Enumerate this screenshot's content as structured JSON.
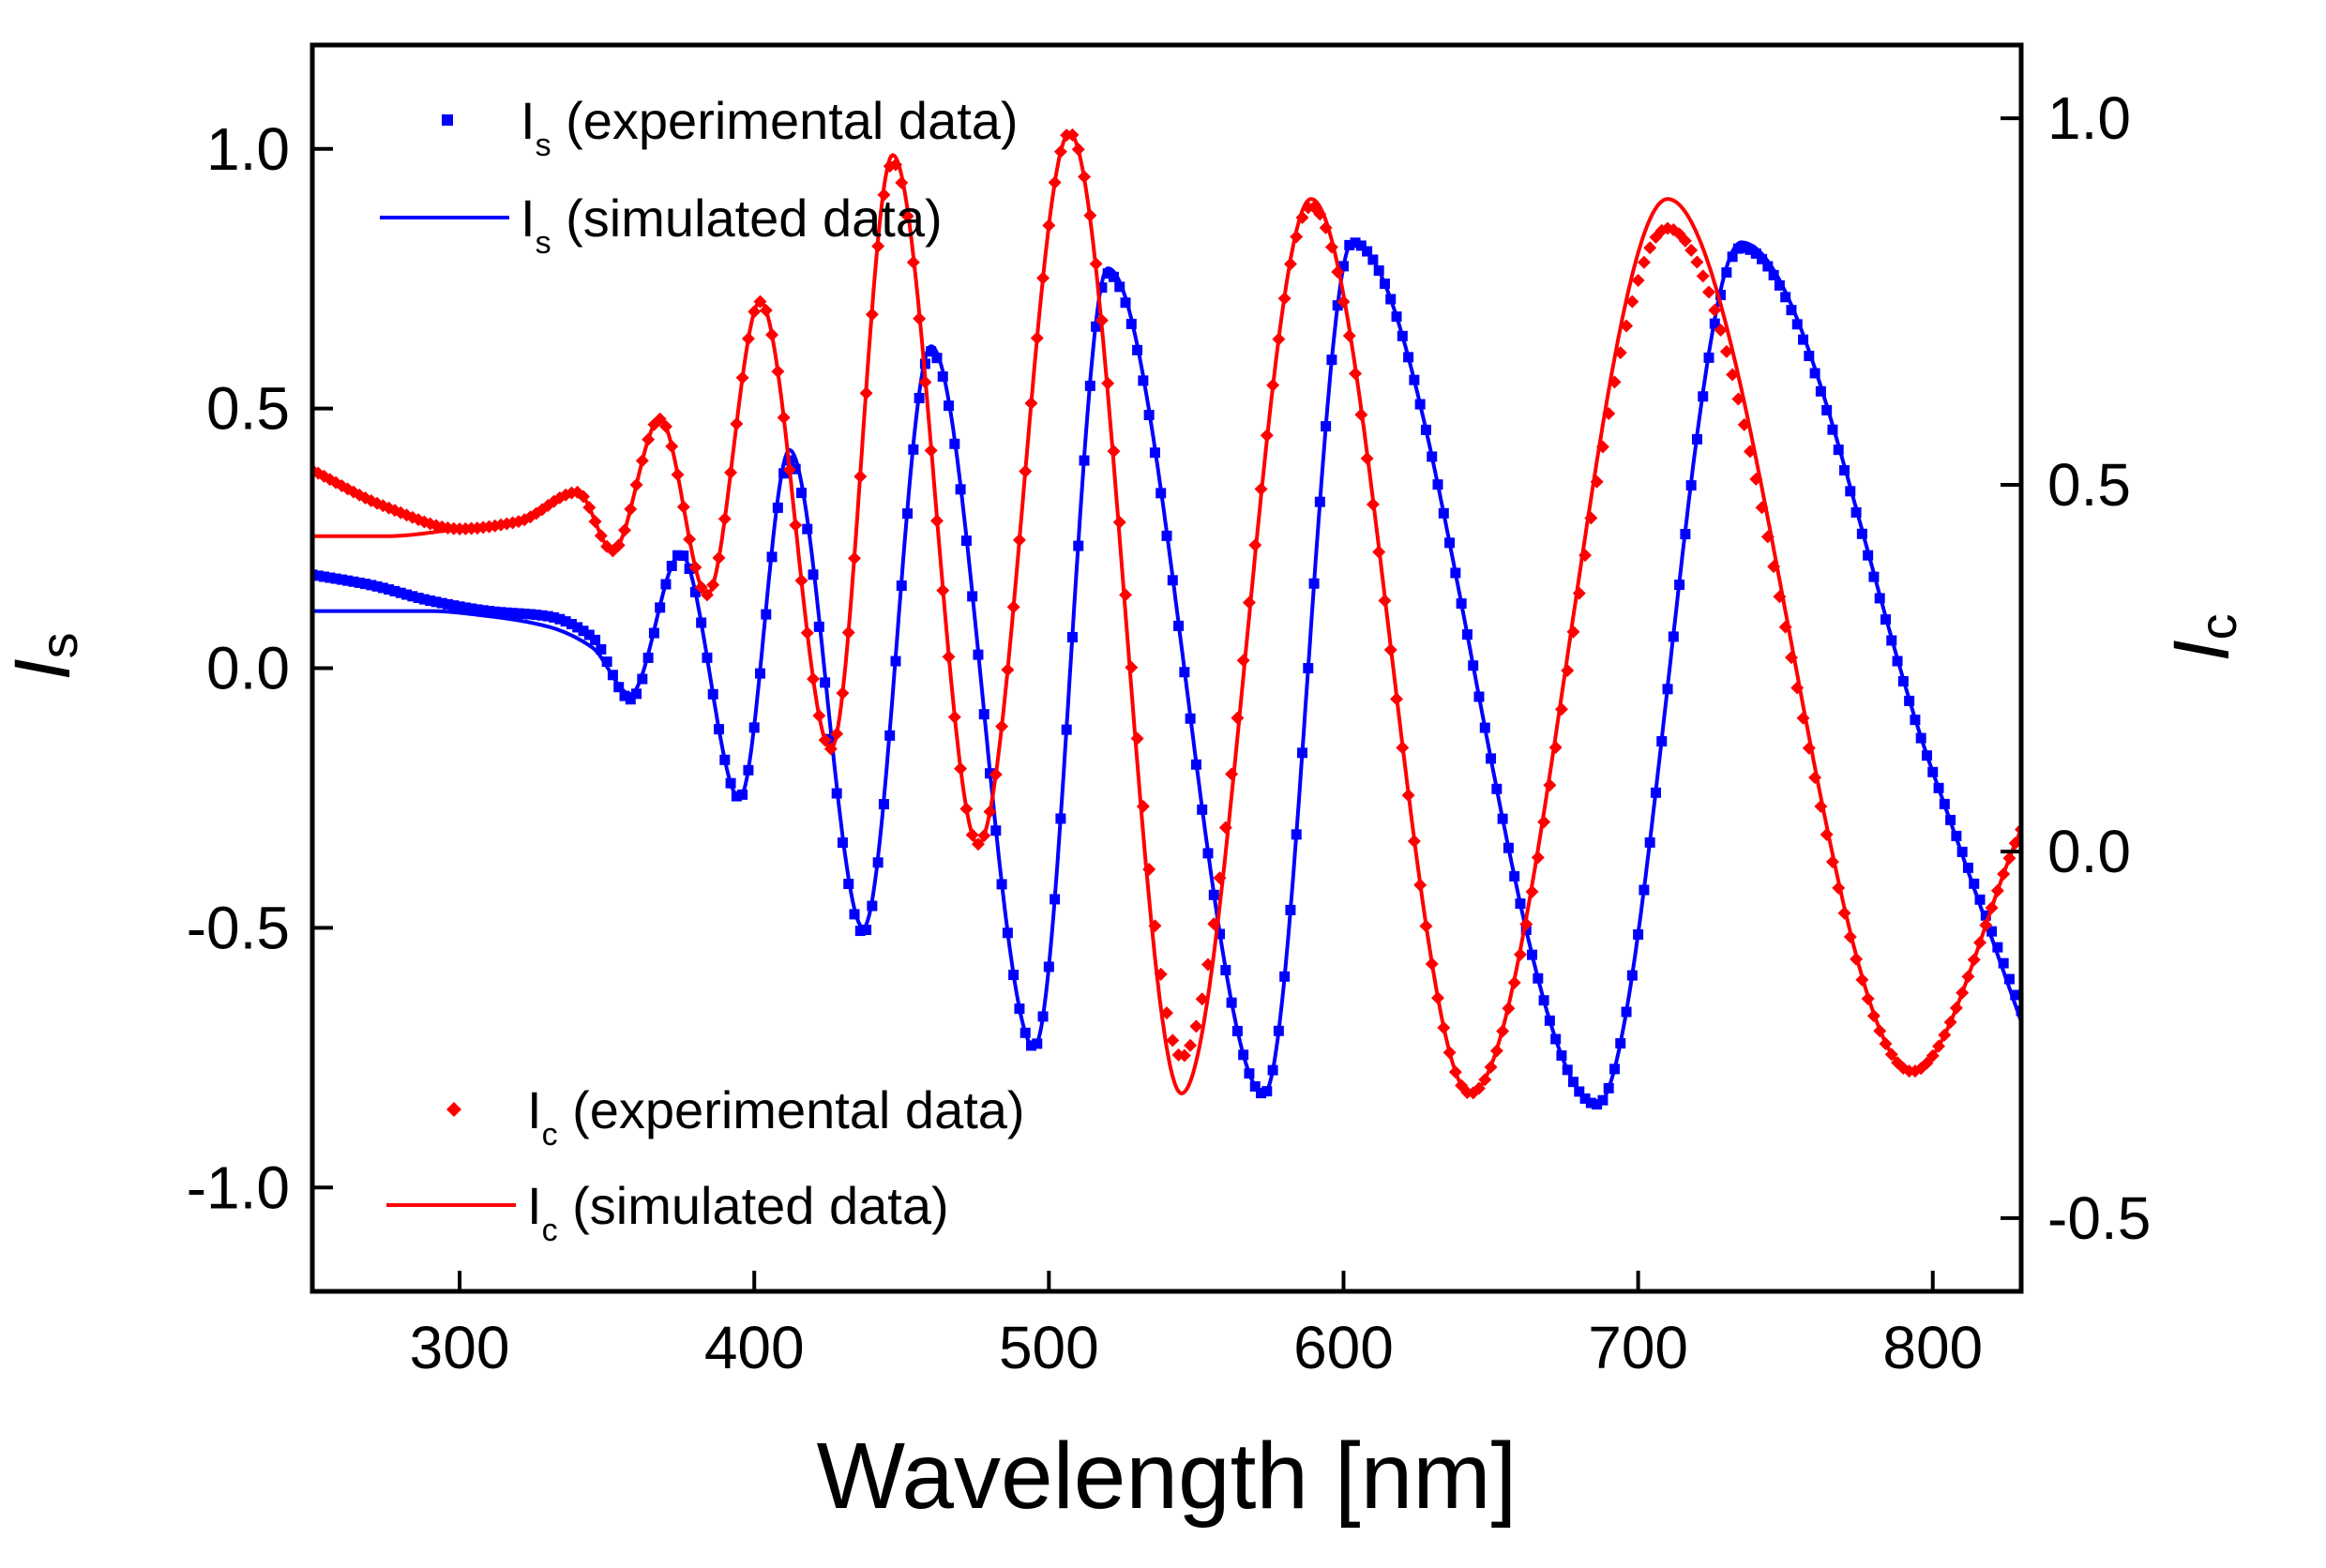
{
  "chart_data": {
    "type": "line",
    "title": "",
    "xlabel": "Wavelength [nm]",
    "ylabel_left": {
      "main": "I",
      "sub": "s"
    },
    "ylabel_right": {
      "main": "I",
      "sub": "c"
    },
    "xlim": [
      250,
      830
    ],
    "ylim_left": [
      -1.2,
      1.2
    ],
    "ylim_right": [
      -0.6,
      1.1
    ],
    "xticks": [
      300,
      400,
      500,
      600,
      700,
      800
    ],
    "xtick_labels": [
      "300",
      "400",
      "500",
      "600",
      "700",
      "800"
    ],
    "yticks_left": [
      -1.0,
      -0.5,
      0.0,
      0.5,
      1.0
    ],
    "ytick_labels_left": [
      "-1.0",
      "-0.5",
      "0.0",
      "0.5",
      "1.0"
    ],
    "yticks_right": [
      -0.5,
      0.0,
      0.5,
      1.0
    ],
    "ytick_labels_right": [
      "-0.5",
      "0.0",
      "0.5",
      "1.0"
    ],
    "grid": false,
    "series": [
      {
        "name": "Is (experimental data)",
        "legend": {
          "main": "I",
          "sub": "s",
          "rest": " (experimental data)"
        },
        "axis": "left",
        "style": "markers-square",
        "color": "#0000ff",
        "x": [
          250,
          270,
          290,
          310,
          330,
          345,
          358,
          375,
          395,
          412,
          437,
          460,
          495,
          520,
          573,
          603,
          686,
          735,
          800,
          830
        ],
        "y": [
          0.18,
          0.16,
          0.13,
          0.11,
          0.1,
          0.06,
          -0.06,
          0.22,
          -0.25,
          0.4,
          -0.51,
          0.61,
          -0.73,
          0.76,
          -0.82,
          0.82,
          -0.84,
          0.81,
          -0.2,
          -0.66
        ]
      },
      {
        "name": "Is (simulated data)",
        "legend": {
          "main": "I",
          "sub": "s",
          "rest": " (simulated data)"
        },
        "axis": "left",
        "style": "line",
        "color": "#0000ff",
        "x": [
          250,
          270,
          290,
          310,
          330,
          345,
          358,
          375,
          395,
          412,
          437,
          460,
          495,
          520,
          573,
          603,
          686,
          735,
          800,
          830
        ],
        "y": [
          0.11,
          0.11,
          0.11,
          0.1,
          0.08,
          0.04,
          -0.05,
          0.22,
          -0.25,
          0.42,
          -0.5,
          0.62,
          -0.73,
          0.77,
          -0.82,
          0.82,
          -0.84,
          0.82,
          -0.2,
          -0.68
        ]
      },
      {
        "name": "Ic (experimental data)",
        "legend": {
          "main": "I",
          "sub": "c",
          "rest": " (experimental data)"
        },
        "axis": "right",
        "style": "markers-diamond",
        "color": "#ff0000",
        "x": [
          250,
          275,
          300,
          320,
          340,
          352,
          368,
          384,
          402,
          426,
          447,
          476,
          507,
          545,
          589,
          643,
          710,
          793,
          830
        ],
        "y": [
          0.52,
          0.47,
          0.44,
          0.45,
          0.49,
          0.41,
          0.59,
          0.35,
          0.75,
          0.14,
          0.94,
          0.01,
          0.98,
          -0.28,
          0.88,
          -0.33,
          0.85,
          -0.3,
          0.03
        ]
      },
      {
        "name": "Ic (simulated data)",
        "legend": {
          "main": "I",
          "sub": "c",
          "rest": " (simulated data)"
        },
        "axis": "right",
        "style": "line",
        "color": "#ff0000",
        "x": [
          250,
          275,
          300,
          320,
          340,
          352,
          368,
          384,
          402,
          426,
          447,
          476,
          507,
          545,
          589,
          643,
          710,
          793,
          830
        ],
        "y": [
          0.43,
          0.43,
          0.44,
          0.45,
          0.49,
          0.41,
          0.59,
          0.35,
          0.75,
          0.14,
          0.95,
          0.01,
          0.98,
          -0.33,
          0.89,
          -0.33,
          0.89,
          -0.3,
          0.03
        ]
      }
    ]
  }
}
